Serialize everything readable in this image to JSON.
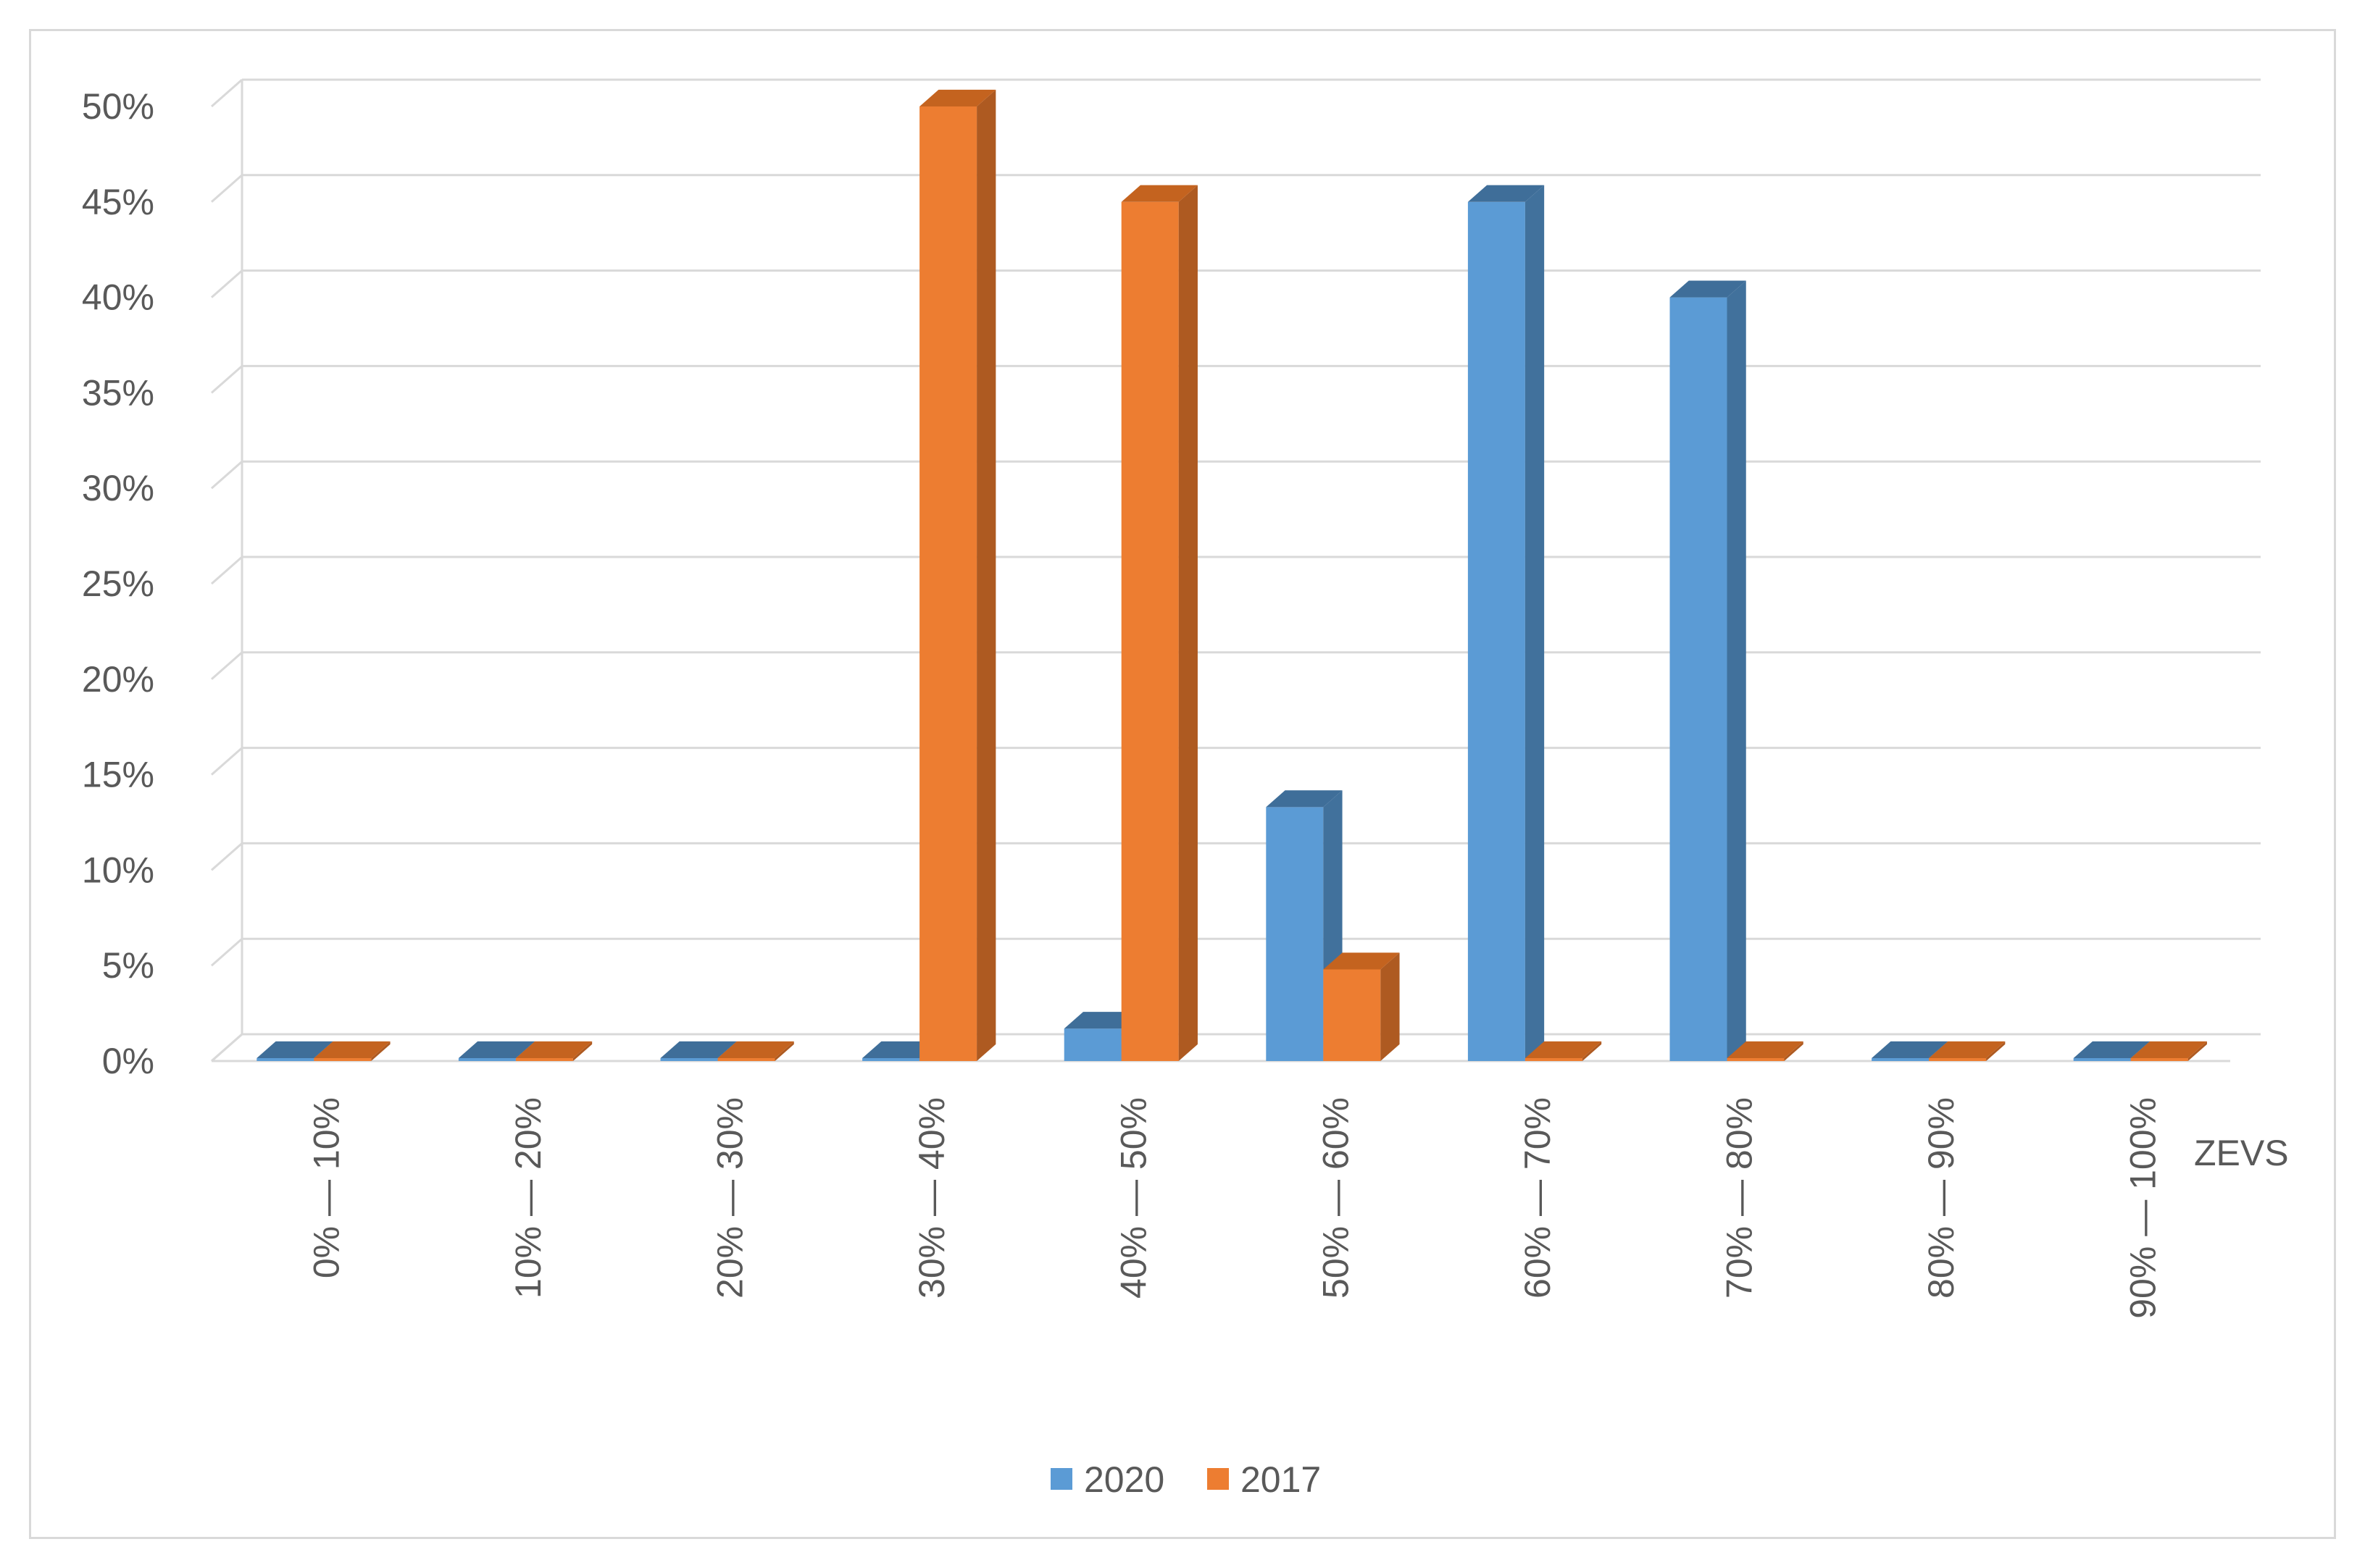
{
  "chart_data": {
    "type": "bar",
    "style": "3d-clustered-column",
    "categories": [
      "0% — 10%",
      "10% — 20%",
      "20% — 30%",
      "30% — 40%",
      "40% — 50%",
      "50% — 60%",
      "60% — 70%",
      "70% — 80%",
      "80% — 90%",
      "90% — 100%"
    ],
    "series": [
      {
        "name": "2020",
        "values": [
          0,
          0,
          0,
          0,
          1.7,
          13.3,
          45,
          40,
          0,
          0
        ],
        "color": "#5B9BD5",
        "side_color": "#41719C",
        "top_color": "#3F6E99"
      },
      {
        "name": "2017",
        "values": [
          0,
          0,
          0,
          50,
          45,
          4.8,
          0,
          0,
          0,
          0
        ],
        "color": "#ED7D31",
        "side_color": "#AE5A21",
        "top_color": "#C4631F"
      }
    ],
    "title": "",
    "xlabel": "ZEVS",
    "ylabel": "",
    "ylim": [
      0,
      50
    ],
    "yticks": [
      "0%",
      "5%",
      "10%",
      "15%",
      "20%",
      "25%",
      "30%",
      "35%",
      "40%",
      "45%",
      "50%"
    ],
    "grid": true,
    "legend": "bottom",
    "colors": {
      "grid": "#D9D9D9",
      "text": "#595959",
      "border": "#D9D9D9"
    }
  }
}
